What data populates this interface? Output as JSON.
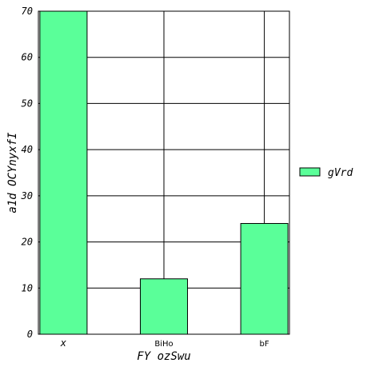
{
  "chart_data": {
    "type": "bar",
    "categories": [
      "x",
      "BiHo",
      "bF"
    ],
    "series": [
      {
        "name": "gVrd",
        "values": [
          70,
          12,
          24
        ],
        "color": "#5aff99"
      }
    ],
    "xlabel": "FY  ozSwu",
    "ylabel": "a1d OCYnyxfI",
    "ylim": [
      0,
      70
    ],
    "yticks": [
      0,
      10,
      20,
      30,
      40,
      50,
      60,
      70
    ],
    "grid": true,
    "legend": "right"
  }
}
